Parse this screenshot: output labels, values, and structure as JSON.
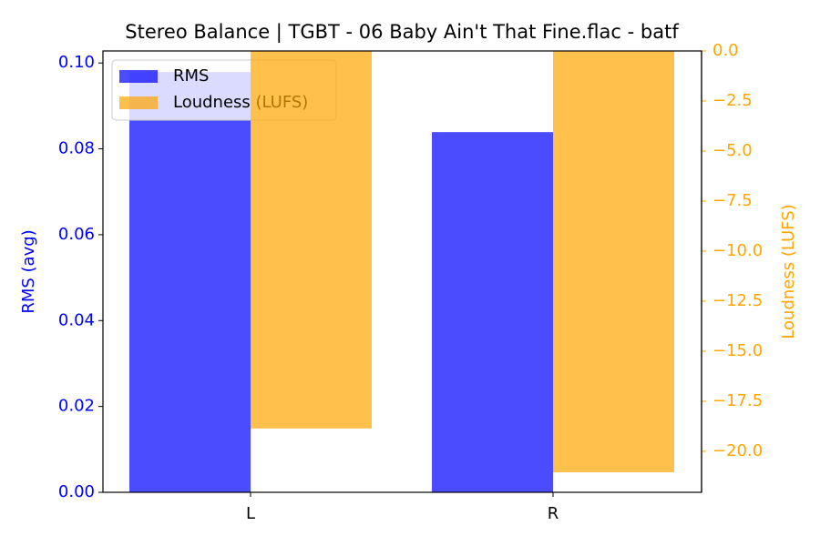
{
  "chart_data": {
    "type": "bar",
    "title": "Stereo Balance | TGBT - 06 Baby Ain't That Fine.flac - batf",
    "categories": [
      "L",
      "R"
    ],
    "ylabel": "RMS (avg)",
    "y2label": "Loudness (LUFS)",
    "alpha": 0.7,
    "series": [
      {
        "name": "RMS",
        "color": "blue",
        "values": [
          0.0979,
          0.0839
        ]
      },
      {
        "name": "Loudness (LUFS)",
        "color": "orange",
        "axis": "y2",
        "values": [
          -18.86,
          -21.05
        ]
      }
    ],
    "ylim": [
      0,
      0.1028
    ],
    "yticks": [
      {
        "value": 0,
        "label": "0.00"
      },
      {
        "value": 0.02,
        "label": "0.02"
      },
      {
        "value": 0.04,
        "label": "0.04"
      },
      {
        "value": 0.06,
        "label": "0.06"
      },
      {
        "value": 0.08,
        "label": "0.08"
      },
      {
        "value": 0.1,
        "label": "0.10"
      }
    ],
    "y2lim": [
      -22.05,
      0
    ],
    "y2ticks": [
      {
        "value": 0,
        "label": "0.0"
      },
      {
        "value": -2.5,
        "label": "−2.5"
      },
      {
        "value": -5,
        "label": "−5.0"
      },
      {
        "value": -7.5,
        "label": "−7.5"
      },
      {
        "value": -10,
        "label": "−10.0"
      },
      {
        "value": -12.5,
        "label": "−12.5"
      },
      {
        "value": -15,
        "label": "−15.0"
      },
      {
        "value": -17.5,
        "label": "−17.5"
      },
      {
        "value": -20,
        "label": "−20.0"
      }
    ],
    "legend": "upper left"
  }
}
